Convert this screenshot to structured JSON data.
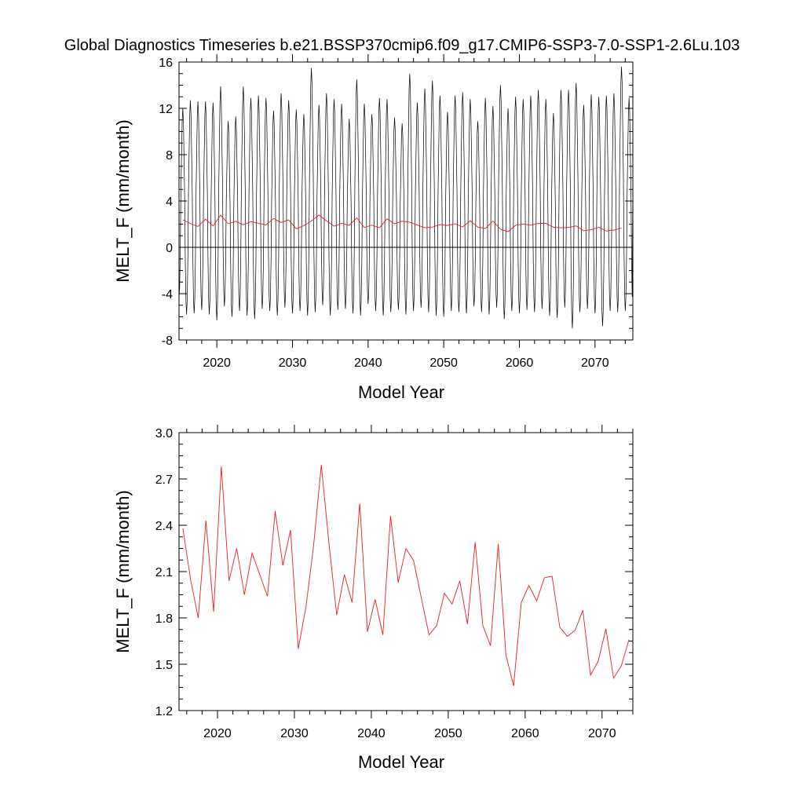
{
  "title": "Global Diagnostics Timeseries b.e21.BSSP370cmip6.f09_g17.CMIP6-SSP3-7.0-SSP1-2.6Lu.103",
  "chart_data": [
    {
      "type": "line",
      "xlabel": "Model Year",
      "ylabel": "MELT_F (mm/month)",
      "xlim": [
        2015,
        2075
      ],
      "ylim": [
        -8,
        16
      ],
      "yticks": [
        "-8",
        "-4",
        "0",
        "4",
        "8",
        "12",
        "16"
      ],
      "xticks": [
        "2020",
        "2030",
        "2040",
        "2050",
        "2060",
        "2070"
      ],
      "zero_line": true,
      "monthly_anomaly_series": {
        "start_year": 2015,
        "months_per_year": 12,
        "annual_peaks": [
          12.0,
          12.7,
          12.6,
          12.6,
          12.5,
          13.9,
          10.9,
          11.3,
          13.9,
          12.9,
          13.1,
          12.9,
          11.8,
          13.3,
          12.7,
          11.9,
          11.5,
          15.5,
          12.3,
          13.3,
          12.8,
          12.4,
          11.1,
          14.5,
          12.4,
          11.5,
          12.9,
          12.8,
          11.2,
          10.7,
          15.0,
          12.5,
          13.7,
          14.4,
          13.1,
          11.7,
          13.1,
          13.4,
          12.8,
          10.9,
          12.9,
          12.2,
          14.0,
          12.0,
          13.0,
          12.8,
          13.1,
          13.6,
          12.8,
          11.6,
          13.6,
          13.6,
          14.2,
          12.3,
          13.2,
          13.0,
          13.1,
          13.3,
          15.6,
          12.9
        ],
        "annual_troughs": [
          -4.5,
          -5.8,
          -5.7,
          -5.4,
          -5.8,
          -6.3,
          -5.1,
          -6.0,
          -5.5,
          -5.9,
          -6.2,
          -5.3,
          -5.5,
          -5.9,
          -5.2,
          -5.7,
          -5.5,
          -5.9,
          -5.6,
          -5.0,
          -5.9,
          -5.4,
          -5.3,
          -5.7,
          -5.9,
          -4.9,
          -5.5,
          -5.9,
          -5.6,
          -5.4,
          -5.8,
          -5.5,
          -5.2,
          -5.6,
          -5.9,
          -6.0,
          -5.5,
          -5.6,
          -5.7,
          -5.1,
          -5.6,
          -5.8,
          -5.2,
          -6.2,
          -5.5,
          -5.7,
          -5.4,
          -5.6,
          -5.3,
          -5.9,
          -6.1,
          -5.2,
          -7.0,
          -5.6,
          -5.3,
          -5.7,
          -6.8,
          -5.5,
          -5.6,
          -5.5
        ],
        "color": "#000000"
      },
      "annual_mean_series": {
        "name": "",
        "color": "#e8201e",
        "x": [
          2015.5,
          2016.5,
          2017.5,
          2018.5,
          2019.5,
          2020.5,
          2021.5,
          2022.5,
          2023.5,
          2024.5,
          2025.5,
          2026.5,
          2027.5,
          2028.5,
          2029.5,
          2030.5,
          2031.5,
          2032.5,
          2033.5,
          2034.5,
          2035.5,
          2036.5,
          2037.5,
          2038.5,
          2039.5,
          2040.5,
          2041.5,
          2042.5,
          2043.5,
          2044.5,
          2045.5,
          2046.5,
          2047.5,
          2048.5,
          2049.5,
          2050.5,
          2051.5,
          2052.5,
          2053.5,
          2054.5,
          2055.5,
          2056.5,
          2057.5,
          2058.5,
          2059.5,
          2060.5,
          2061.5,
          2062.5,
          2063.5,
          2064.5,
          2065.5,
          2066.5,
          2067.5,
          2068.5,
          2069.5,
          2070.5,
          2071.5,
          2072.5,
          2073.5
        ],
        "y": [
          2.38,
          2.05,
          1.8,
          2.43,
          1.84,
          2.78,
          2.04,
          2.25,
          1.95,
          2.22,
          2.08,
          1.94,
          2.49,
          2.14,
          2.37,
          1.6,
          1.87,
          2.27,
          2.79,
          2.28,
          1.82,
          2.08,
          1.9,
          2.54,
          1.71,
          1.92,
          1.69,
          2.46,
          2.03,
          2.25,
          2.17,
          1.93,
          1.69,
          1.75,
          1.96,
          1.89,
          2.04,
          1.76,
          2.29,
          1.75,
          1.62,
          2.28,
          1.56,
          1.36,
          1.9,
          2.01,
          1.91,
          2.06,
          2.07,
          1.74,
          1.68,
          1.72,
          1.85,
          1.43,
          1.52,
          1.73,
          1.41,
          1.49,
          1.66
        ]
      }
    },
    {
      "type": "line",
      "xlabel": "Model Year",
      "ylabel": "MELT_F (mm/month)",
      "xlim": [
        2015,
        2074
      ],
      "ylim": [
        1.2,
        3.0
      ],
      "yticks": [
        "1.2",
        "1.5",
        "1.8",
        "2.1",
        "2.4",
        "2.7",
        "3.0"
      ],
      "xticks": [
        "2020",
        "2030",
        "2040",
        "2050",
        "2060",
        "2070"
      ],
      "series": [
        {
          "name": "",
          "color": "#e8201e",
          "x": [
            2015.5,
            2016.5,
            2017.5,
            2018.5,
            2019.5,
            2020.5,
            2021.5,
            2022.5,
            2023.5,
            2024.5,
            2025.5,
            2026.5,
            2027.5,
            2028.5,
            2029.5,
            2030.5,
            2031.5,
            2032.5,
            2033.5,
            2034.5,
            2035.5,
            2036.5,
            2037.5,
            2038.5,
            2039.5,
            2040.5,
            2041.5,
            2042.5,
            2043.5,
            2044.5,
            2045.5,
            2046.5,
            2047.5,
            2048.5,
            2049.5,
            2050.5,
            2051.5,
            2052.5,
            2053.5,
            2054.5,
            2055.5,
            2056.5,
            2057.5,
            2058.5,
            2059.5,
            2060.5,
            2061.5,
            2062.5,
            2063.5,
            2064.5,
            2065.5,
            2066.5,
            2067.5,
            2068.5,
            2069.5,
            2070.5,
            2071.5,
            2072.5,
            2073.5
          ],
          "y": [
            2.38,
            2.05,
            1.8,
            2.43,
            1.84,
            2.78,
            2.04,
            2.25,
            1.95,
            2.22,
            2.08,
            1.94,
            2.49,
            2.14,
            2.37,
            1.6,
            1.87,
            2.27,
            2.79,
            2.28,
            1.82,
            2.08,
            1.9,
            2.54,
            1.71,
            1.92,
            1.69,
            2.46,
            2.03,
            2.25,
            2.17,
            1.93,
            1.69,
            1.75,
            1.96,
            1.89,
            2.04,
            1.76,
            2.29,
            1.75,
            1.62,
            2.28,
            1.56,
            1.36,
            1.9,
            2.01,
            1.91,
            2.06,
            2.07,
            1.74,
            1.68,
            1.72,
            1.85,
            1.43,
            1.52,
            1.73,
            1.41,
            1.49,
            1.66
          ]
        }
      ]
    }
  ]
}
